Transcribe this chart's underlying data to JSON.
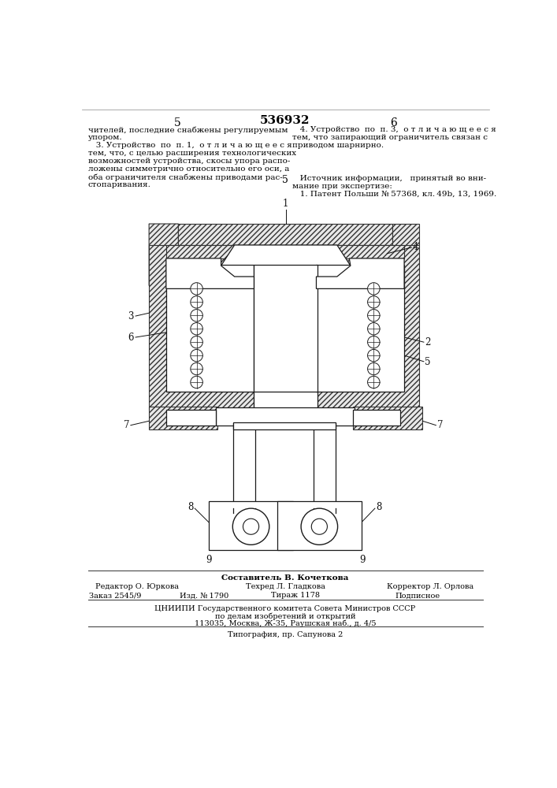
{
  "patent_number": "536932",
  "page_left": "5",
  "page_right": "6",
  "background_color": "#ffffff",
  "text_color": "#000000",
  "text_left_col": [
    "чителей, последние снабжены регулируемым",
    "упором.",
    "   3. Устройство  по  п. 1,  о т л и ч а ю щ е е с я",
    "тем, что, с целью расширения технологических",
    "возможностей устройства, скосы упора распо-",
    "ложены симметрично относительно его оси, а",
    "оба ограничителя снабжены приводами рас-",
    "стопаривания."
  ],
  "text_right_col": [
    "   4. Устройство  по  п. 3,  о т л и ч а ю щ е е с я",
    "тем, что запирающий ограничитель связан с",
    "приводом шарнирно."
  ],
  "text_right_col2": [
    "   Источник информации,   принятый во вни-",
    "мание при экспертизе:",
    "   1. Патент Польши № 57368, кл. 49b, 13, 1969."
  ],
  "footer_sestavitel": "Составитель В. Кочеткова",
  "footer_redaktor": "Редактор О. Юркова",
  "footer_tehred": "Техред Л. Гладкова",
  "footer_korrektor": "Корректор Л. Орлова",
  "footer_zakaz": "Заказ 2545/9",
  "footer_izd": "Изд. № 1790",
  "footer_tirazh": "Тираж 1178",
  "footer_podpisnoe": "Подписное",
  "footer_cniipи": "ЦНИИПИ Государственного комитета Совета Министров СССР",
  "footer_po_delam": "по делам изобретений и открытий",
  "footer_address": "113035, Москва, Ж-35, Раушская наб., д. 4/5",
  "footer_tipografia": "Типография, пр. Сапунова 2"
}
